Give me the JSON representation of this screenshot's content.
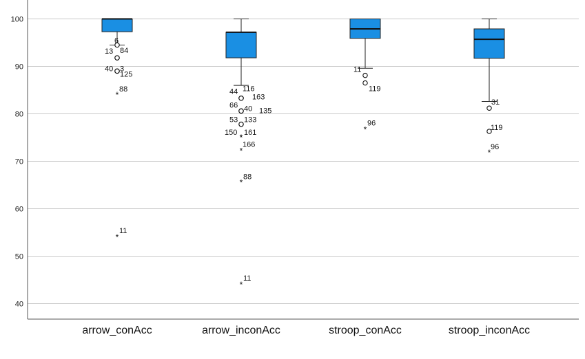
{
  "chart_data": {
    "type": "boxplot",
    "title": "",
    "xlabel": "",
    "ylabel": "",
    "ylim": [
      36,
      104
    ],
    "yticks": [
      40,
      50,
      60,
      70,
      80,
      90,
      100
    ],
    "grid": "horizontal",
    "box_color": "#1a8fe3",
    "categories": [
      "arrow_conAcc",
      "arrow_inconAcc",
      "stroop_conAcc",
      "stroop_inconAcc"
    ],
    "boxes": [
      {
        "category": "arrow_conAcc",
        "whisker_low": 94.5,
        "q1": 97.3,
        "median": 100,
        "q3": 100,
        "whisker_high": 100,
        "outliers": [
          {
            "label": "6",
            "value": 94.5,
            "marker": "circle"
          },
          {
            "label": "13",
            "value": 91.8,
            "marker": "circle"
          },
          {
            "label": "84",
            "value": 91.8,
            "marker": "circle"
          },
          {
            "label": "40",
            "value": 89,
            "marker": "circle"
          },
          {
            "label": "3",
            "value": 89,
            "marker": "circle"
          },
          {
            "label": "125",
            "value": 89,
            "marker": "circle"
          },
          {
            "label": "88",
            "value": 84,
            "marker": "star"
          },
          {
            "label": "11",
            "value": 54,
            "marker": "star"
          }
        ]
      },
      {
        "category": "arrow_inconAcc",
        "whisker_low": 86,
        "q1": 91.8,
        "median": 97.2,
        "q3": 97.2,
        "whisker_high": 100,
        "outliers": [
          {
            "label": "44",
            "value": 83.3,
            "marker": "circle"
          },
          {
            "label": "116",
            "value": 83.3,
            "marker": "circle"
          },
          {
            "label": "163",
            "value": 83.3,
            "marker": "circle"
          },
          {
            "label": "66",
            "value": 80.6,
            "marker": "circle"
          },
          {
            "label": "40",
            "value": 80.6,
            "marker": "circle"
          },
          {
            "label": "135",
            "value": 80.6,
            "marker": "circle"
          },
          {
            "label": "53",
            "value": 77.8,
            "marker": "circle"
          },
          {
            "label": "133",
            "value": 77.8,
            "marker": "circle"
          },
          {
            "label": "150",
            "value": 75,
            "marker": "star"
          },
          {
            "label": "161",
            "value": 75,
            "marker": "star"
          },
          {
            "label": "166",
            "value": 72.2,
            "marker": "star"
          },
          {
            "label": "88",
            "value": 65.5,
            "marker": "star"
          },
          {
            "label": "11",
            "value": 44,
            "marker": "star"
          }
        ]
      },
      {
        "category": "stroop_conAcc",
        "whisker_low": 89.6,
        "q1": 95.9,
        "median": 97.9,
        "q3": 100,
        "whisker_high": 100,
        "outliers": [
          {
            "label": "11",
            "value": 88.1,
            "marker": "circle"
          },
          {
            "label": "119",
            "value": 86.5,
            "marker": "circle"
          },
          {
            "label": "96",
            "value": 76.7,
            "marker": "star"
          }
        ]
      },
      {
        "category": "stroop_inconAcc",
        "whisker_low": 82.6,
        "q1": 91.7,
        "median": 95.7,
        "q3": 97.9,
        "whisker_high": 100,
        "outliers": [
          {
            "label": "31",
            "value": 81.2,
            "marker": "circle"
          },
          {
            "label": "119",
            "value": 76.3,
            "marker": "circle"
          },
          {
            "label": "96",
            "value": 71.8,
            "marker": "star"
          }
        ]
      }
    ]
  }
}
